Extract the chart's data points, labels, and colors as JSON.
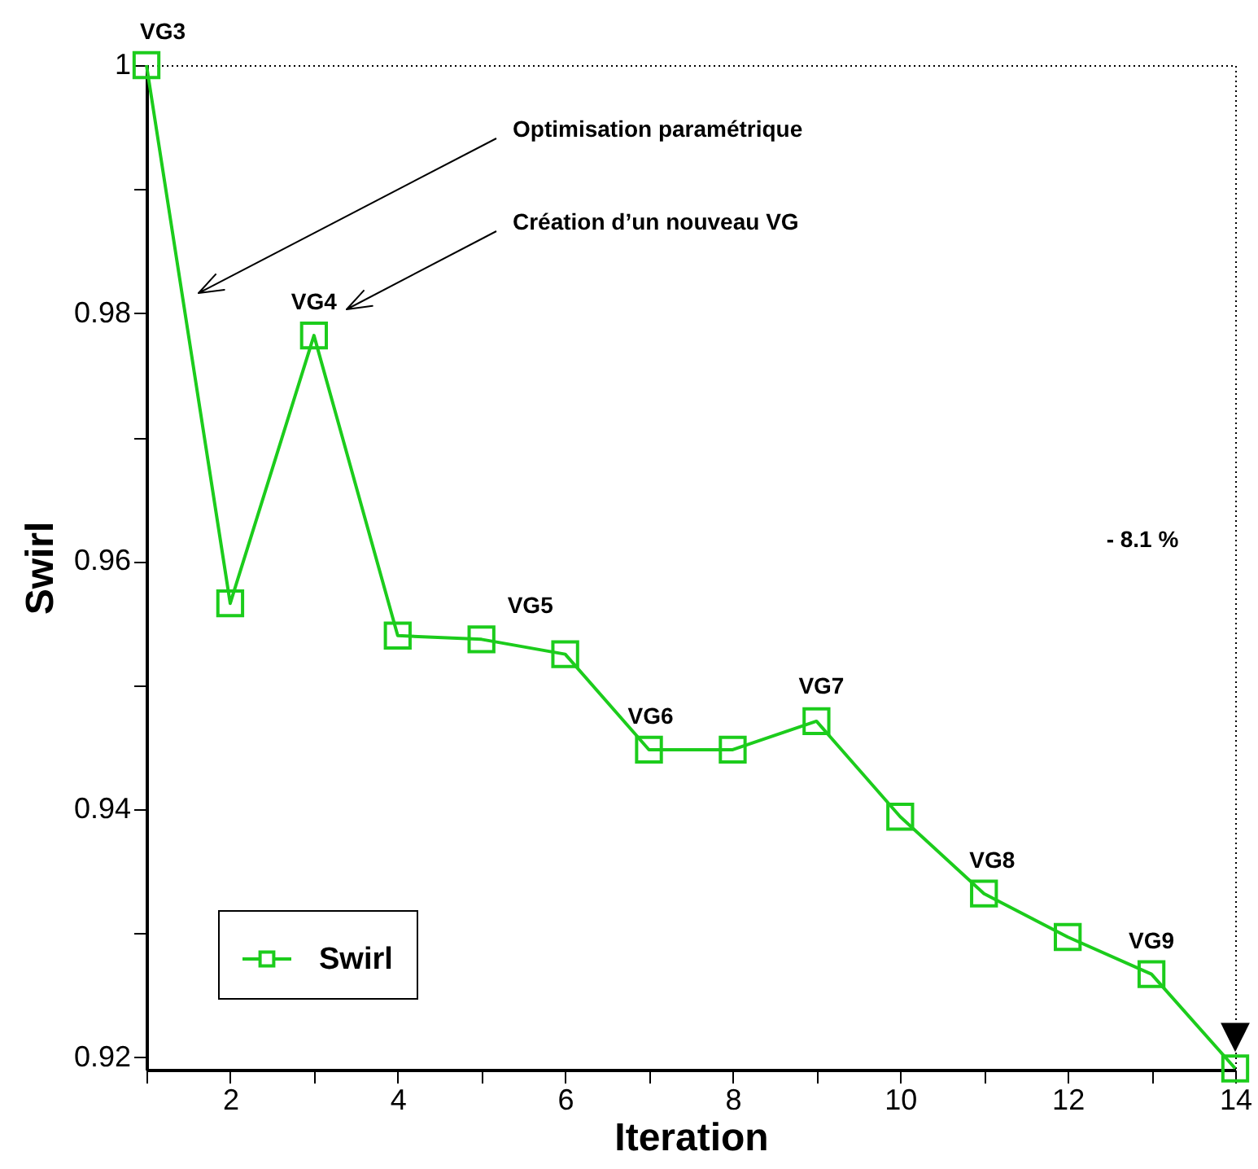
{
  "chart_data": {
    "type": "line",
    "xlabel": "Iteration",
    "ylabel": "Swirl",
    "x": [
      1,
      2,
      3,
      4,
      5,
      6,
      7,
      8,
      9,
      10,
      11,
      12,
      13,
      14
    ],
    "series": [
      {
        "name": "Swirl",
        "color": "#1ccc1c",
        "values": [
          1.0,
          0.9566,
          0.9782,
          0.954,
          0.9537,
          0.9525,
          0.9448,
          0.9448,
          0.9471,
          0.9394,
          0.9332,
          0.9297,
          0.9267,
          0.9191
        ]
      }
    ],
    "xlim": [
      1,
      14
    ],
    "ylim": [
      0.919,
      1
    ],
    "xticks": [
      {
        "value": 1,
        "label": null
      },
      2,
      {
        "value": 3,
        "label": null
      },
      4,
      {
        "value": 5,
        "label": null
      },
      6,
      {
        "value": 7,
        "label": null
      },
      8,
      {
        "value": 9,
        "label": null
      },
      10,
      {
        "value": 11,
        "label": null
      },
      12,
      {
        "value": 13,
        "label": null
      },
      14
    ],
    "yticks": [
      0.92,
      {
        "value": 0.93,
        "label": null
      },
      0.94,
      {
        "value": 0.95,
        "label": null
      },
      0.96,
      {
        "value": 0.97,
        "label": null
      },
      0.98,
      {
        "value": 0.99,
        "label": null
      },
      1
    ],
    "grid": false,
    "legend": "bottom left",
    "marker": "square",
    "line_style": "solid",
    "annotations": [
      {
        "text": "VG3",
        "x": 1,
        "y": 1.0
      },
      {
        "text": "VG4",
        "x": 3,
        "y": 0.9782
      },
      {
        "text": "VG5",
        "x": 5,
        "y": 0.9537
      },
      {
        "text": "VG6",
        "x": 7,
        "y": 0.9448
      },
      {
        "text": "VG7",
        "x": 9,
        "y": 0.9471
      },
      {
        "text": "VG8",
        "x": 11,
        "y": 0.9332
      },
      {
        "text": "VG9",
        "x": 13,
        "y": 0.9267
      },
      "Optimisation paramétrique",
      "Création d’un nouveau VG",
      "- 8.1 %"
    ]
  }
}
